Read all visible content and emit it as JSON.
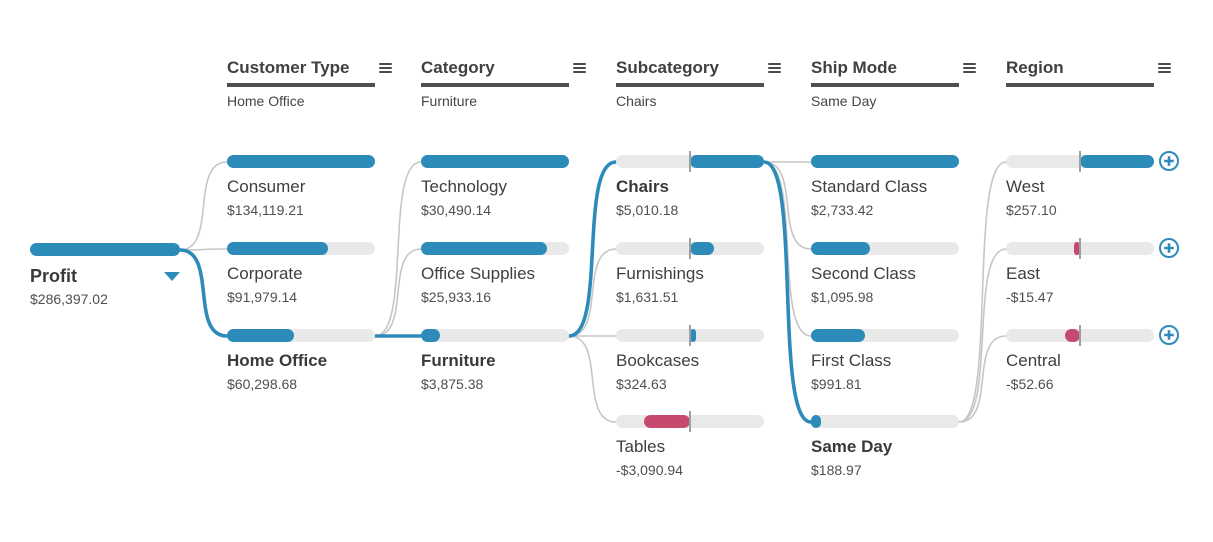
{
  "chart_data": {
    "type": "bar",
    "visual": "decomposition-tree",
    "measure": {
      "label": "Profit",
      "value": "$286,397.02",
      "num": 286397.02
    },
    "levels": [
      {
        "field": "Customer Type",
        "selected_label": "Home Office",
        "selected_index": 2,
        "nodes": [
          {
            "label": "Consumer",
            "value": "$134,119.21",
            "num": 134119.21
          },
          {
            "label": "Corporate",
            "value": "$91,979.14",
            "num": 91979.14
          },
          {
            "label": "Home Office",
            "value": "$60,298.68",
            "num": 60298.68
          }
        ]
      },
      {
        "field": "Category",
        "selected_label": "Furniture",
        "selected_index": 2,
        "nodes": [
          {
            "label": "Technology",
            "value": "$30,490.14",
            "num": 30490.14
          },
          {
            "label": "Office Supplies",
            "value": "$25,933.16",
            "num": 25933.16
          },
          {
            "label": "Furniture",
            "value": "$3,875.38",
            "num": 3875.38
          }
        ]
      },
      {
        "field": "Subcategory",
        "selected_label": "Chairs",
        "selected_index": 0,
        "nodes": [
          {
            "label": "Chairs",
            "value": "$5,010.18",
            "num": 5010.18
          },
          {
            "label": "Furnishings",
            "value": "$1,631.51",
            "num": 1631.51
          },
          {
            "label": "Bookcases",
            "value": "$324.63",
            "num": 324.63
          },
          {
            "label": "Tables",
            "value": "-$3,090.94",
            "num": -3090.94
          }
        ]
      },
      {
        "field": "Ship Mode",
        "selected_label": "Same Day",
        "selected_index": 3,
        "nodes": [
          {
            "label": "Standard Class",
            "value": "$2,733.42",
            "num": 2733.42
          },
          {
            "label": "Second Class",
            "value": "$1,095.98",
            "num": 1095.98
          },
          {
            "label": "First Class",
            "value": "$991.81",
            "num": 991.81
          },
          {
            "label": "Same Day",
            "value": "$188.97",
            "num": 188.97
          }
        ]
      },
      {
        "field": "Region",
        "selected_label": "",
        "selected_index": -1,
        "expandable": true,
        "nodes": [
          {
            "label": "West",
            "value": "$257.10",
            "num": 257.1
          },
          {
            "label": "East",
            "value": "-$15.47",
            "num": -15.47
          },
          {
            "label": "Central",
            "value": "-$52.66",
            "num": -52.66
          }
        ]
      }
    ],
    "colors": {
      "accent_blue": "#2d8bba",
      "negative_red": "#c6496e",
      "track_gray": "#e9e9e9",
      "link_gray": "#c6c6c6"
    }
  }
}
